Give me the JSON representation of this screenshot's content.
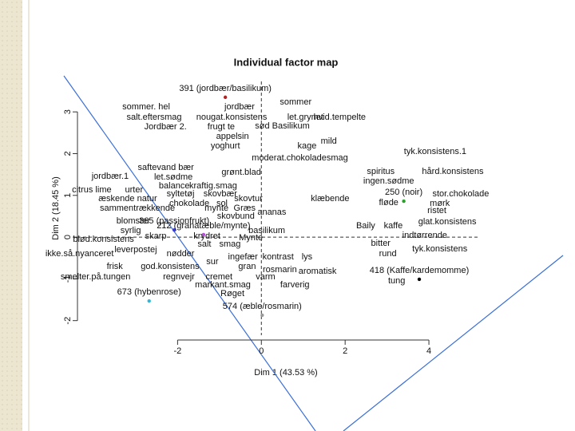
{
  "chart_data": {
    "type": "scatter",
    "title": "Individual factor map",
    "xlabel": "Dim 1 (43.53 %)",
    "ylabel": "Dim 2 (18.45 %)",
    "xlim": [
      -4.2,
      5.2
    ],
    "ylim": [
      -2.35,
      3.73
    ],
    "xticks": [
      -2,
      0,
      2,
      4
    ],
    "yticks": [
      -2,
      -1,
      0,
      1,
      2,
      3
    ],
    "individuals": {
      "labels": [
        "391 (jordbær/basilikum)",
        "365 (passionfrukt)",
        "212 (granatæble/mynte)",
        "250 (noir)",
        "673 (hybenrose)",
        "574 (æble/rosmarin)",
        "418 (Kaffe/kardemomme)"
      ],
      "colors": [
        "#b22222",
        "#3a3ad6",
        "#b44fd6",
        "#2ca02c",
        "#2fb9d6",
        "#9a9a9a",
        "#000000"
      ],
      "x": [
        -0.86,
        -2.08,
        -1.38,
        3.4,
        -2.68,
        0.02,
        3.77
      ],
      "y": [
        3.35,
        0.17,
        0.06,
        0.86,
        -1.53,
        -1.87,
        -1.01
      ]
    },
    "words": {
      "color": "#000000",
      "labels": [
        "sommer",
        "sommer. hel",
        "jordbær",
        "salt.eftersmag",
        "nougat.konsistens",
        "let.grynet",
        "hvid.tempelte",
        "Jordbær 2.",
        "frugt te",
        "sød Basilikum",
        "appelsin",
        "yoghurt",
        "kage",
        "mild",
        "tyk.konsistens.1",
        "moderat.chokoladesmag",
        "saftevand bær",
        "grønt.blad",
        "spiritus",
        "hård.konsistens",
        "jordbær.1",
        "let.sødme",
        "ingen.sødme",
        "balance",
        "kraftig.smag",
        "citrus lime",
        "urter",
        "syltetøj",
        "skovbær",
        "stor.chokolade",
        "æskende natur",
        "klæbende",
        "chokolade",
        "sol",
        "skovtur",
        "fløde",
        "mørk",
        "sammentrækkende",
        "mynte",
        "Græs",
        "ristet",
        "ananas",
        "skovbund",
        "blomster",
        "glat.konsistens",
        "Baily",
        "kaffe",
        "syrlig",
        "basilikum",
        "indtørrende",
        "blød.konsistens",
        "skarp",
        "krydret",
        "Mynte",
        "bitter",
        "salt",
        "smag",
        "tyk.konsistens",
        "ikke.så.nyanceret",
        "leverpostej",
        "nødder",
        "rund",
        "ingefær",
        "kontrast",
        "lys",
        "sur",
        "gran",
        "frisk",
        "god.konsistens",
        "rosmarin",
        "aromatisk",
        "smelter.på.tungen",
        "regnvejr",
        "cremet",
        "varm",
        "tung",
        "markant.smag",
        "farverig",
        "Røget"
      ],
      "x": [
        0.82,
        -2.75,
        -0.52,
        -2.56,
        -0.71,
        1.05,
        1.87,
        -2.29,
        -0.96,
        0.5,
        -0.69,
        -0.86,
        1.09,
        1.61,
        4.15,
        0.92,
        -2.28,
        -0.48,
        2.85,
        4.57,
        -3.61,
        -2.1,
        3.04,
        -2.08,
        -1.15,
        -4.05,
        -3.04,
        -1.93,
        -0.98,
        4.76,
        -3.19,
        1.64,
        -1.72,
        -0.94,
        -0.31,
        3.04,
        4.26,
        -2.96,
        -1.07,
        -0.4,
        4.19,
        0.25,
        -0.61,
        -3.06,
        4.44,
        2.49,
        3.15,
        -3.12,
        0.13,
        3.9,
        -3.77,
        -2.52,
        -1.3,
        -0.25,
        2.85,
        -1.36,
        -0.75,
        4.26,
        -4.34,
        -3.0,
        -1.93,
        3.02,
        -0.44,
        0.4,
        1.09,
        -1.17,
        -0.34,
        -3.5,
        -2.18,
        0.44,
        1.34,
        -3.96,
        -1.97,
        -1.01,
        0.1,
        3.23,
        -0.92,
        0.8,
        -0.69
      ],
      "y": [
        3.23,
        3.12,
        3.12,
        2.87,
        2.87,
        2.87,
        2.87,
        2.64,
        2.64,
        2.66,
        2.41,
        2.18,
        2.18,
        2.29,
        2.05,
        1.89,
        1.66,
        1.55,
        1.57,
        1.57,
        1.45,
        1.43,
        1.34,
        1.22,
        1.22,
        1.13,
        1.13,
        1.03,
        1.03,
        1.03,
        0.92,
        0.92,
        0.8,
        0.8,
        0.92,
        0.82,
        0.8,
        0.69,
        0.69,
        0.69,
        0.63,
        0.59,
        0.5,
        0.38,
        0.36,
        0.27,
        0.27,
        0.15,
        0.15,
        0.04,
        -0.06,
        0.02,
        0.02,
        -0.02,
        -0.15,
        -0.17,
        -0.17,
        -0.29,
        -0.4,
        -0.31,
        -0.4,
        -0.4,
        -0.48,
        -0.48,
        -0.48,
        -0.59,
        -0.71,
        -0.71,
        -0.71,
        -0.78,
        -0.82,
        -0.96,
        -0.96,
        -0.96,
        -0.96,
        -1.05,
        -1.15,
        -1.15,
        -1.36
      ]
    }
  }
}
